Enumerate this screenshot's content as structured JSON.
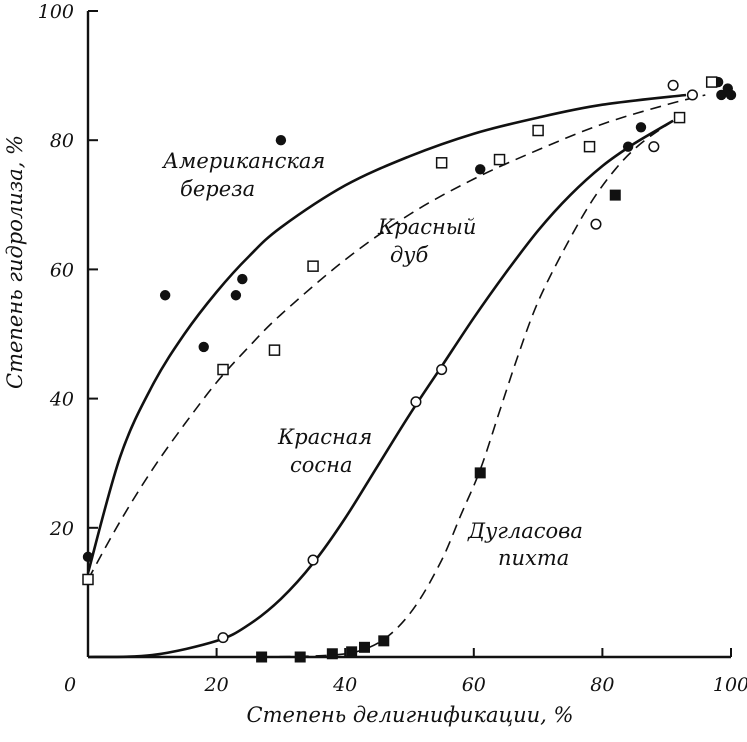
{
  "chart_data": {
    "type": "scatter",
    "xlabel": "Степень делигнификации, %",
    "ylabel": "Степень гидролиза, %",
    "xlim": [
      0,
      100
    ],
    "ylim": [
      0,
      100
    ],
    "origin_label": "0",
    "x_ticks": [
      20,
      40,
      60,
      80,
      100
    ],
    "y_ticks": [
      20,
      40,
      60,
      80,
      100
    ],
    "grid": false,
    "series": [
      {
        "name": "Американская береза",
        "label_lines": [
          "Американская",
          "береза"
        ],
        "marker": "filled-circle",
        "line": "solid",
        "points": [
          [
            0,
            15.5
          ],
          [
            12,
            56
          ],
          [
            18,
            48
          ],
          [
            23,
            56
          ],
          [
            24,
            58.5
          ],
          [
            30,
            80
          ],
          [
            61,
            75.5
          ],
          [
            84,
            79
          ],
          [
            86,
            82
          ],
          [
            98,
            89
          ],
          [
            98.5,
            87
          ],
          [
            99.5,
            88
          ],
          [
            100,
            87
          ]
        ],
        "fit": [
          [
            0,
            13
          ],
          [
            5,
            31
          ],
          [
            10,
            42
          ],
          [
            15,
            50
          ],
          [
            20,
            56.5
          ],
          [
            25,
            62
          ],
          [
            30,
            66.5
          ],
          [
            40,
            73
          ],
          [
            50,
            77.5
          ],
          [
            60,
            81
          ],
          [
            70,
            83.5
          ],
          [
            80,
            85.5
          ],
          [
            93,
            87
          ]
        ]
      },
      {
        "name": "Красный дуб",
        "label_lines": [
          "Красный",
          "дуб"
        ],
        "marker": "open-square",
        "line": "dashed",
        "points": [
          [
            0,
            12
          ],
          [
            21,
            44.5
          ],
          [
            29,
            47.5
          ],
          [
            35,
            60.5
          ],
          [
            55,
            76.5
          ],
          [
            64,
            77
          ],
          [
            70,
            81.5
          ],
          [
            78,
            79
          ],
          [
            92,
            83.5
          ],
          [
            97,
            89
          ]
        ],
        "fit": [
          [
            0,
            12
          ],
          [
            5,
            21
          ],
          [
            10,
            29
          ],
          [
            15,
            36
          ],
          [
            20,
            42.5
          ],
          [
            25,
            48
          ],
          [
            30,
            53
          ],
          [
            40,
            61.5
          ],
          [
            50,
            68.5
          ],
          [
            60,
            74
          ],
          [
            70,
            78.5
          ],
          [
            80,
            82.5
          ],
          [
            90,
            85.5
          ],
          [
            96,
            87
          ]
        ]
      },
      {
        "name": "Красная сосна",
        "label_lines": [
          "Красная",
          "сосна"
        ],
        "marker": "open-circle",
        "line": "solid",
        "points": [
          [
            21,
            3
          ],
          [
            35,
            15
          ],
          [
            51,
            39.5
          ],
          [
            55,
            44.5
          ],
          [
            79,
            67
          ],
          [
            88,
            79
          ],
          [
            91,
            88.5
          ],
          [
            94,
            87
          ]
        ],
        "fit": [
          [
            0,
            0
          ],
          [
            10,
            0.3
          ],
          [
            20,
            2.5
          ],
          [
            25,
            5
          ],
          [
            30,
            9
          ],
          [
            35,
            14.5
          ],
          [
            40,
            21.5
          ],
          [
            45,
            29.5
          ],
          [
            50,
            37.5
          ],
          [
            55,
            45
          ],
          [
            60,
            52.5
          ],
          [
            65,
            59.5
          ],
          [
            70,
            66
          ],
          [
            75,
            71.5
          ],
          [
            80,
            76
          ],
          [
            85,
            79.5
          ],
          [
            91,
            83
          ]
        ]
      },
      {
        "name": "Дугласова пихта",
        "label_lines": [
          "Дугласова",
          "пихта"
        ],
        "marker": "filled-square",
        "line": "dashed",
        "points": [
          [
            27,
            0
          ],
          [
            33,
            0
          ],
          [
            38,
            0.5
          ],
          [
            41,
            0.8
          ],
          [
            43,
            1.5
          ],
          [
            46,
            2.5
          ],
          [
            61,
            28.5
          ],
          [
            82,
            71.5
          ]
        ],
        "fit": [
          [
            27,
            0
          ],
          [
            38,
            0.3
          ],
          [
            43,
            1.2
          ],
          [
            47,
            3.5
          ],
          [
            51,
            8
          ],
          [
            55,
            15
          ],
          [
            58,
            22
          ],
          [
            61,
            29
          ],
          [
            64,
            38
          ],
          [
            67,
            47
          ],
          [
            70,
            55
          ],
          [
            74,
            63
          ],
          [
            78,
            70
          ],
          [
            82,
            75.5
          ],
          [
            86,
            79.5
          ],
          [
            91,
            83
          ]
        ]
      }
    ]
  }
}
